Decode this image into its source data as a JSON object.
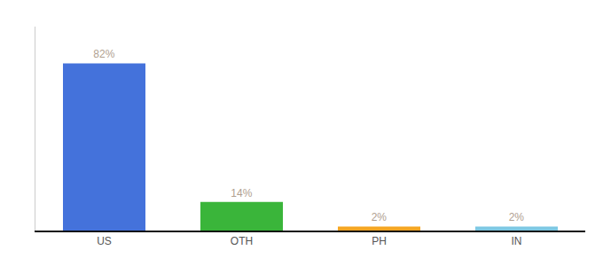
{
  "chart_data": {
    "type": "bar",
    "categories": [
      "US",
      "OTH",
      "PH",
      "IN"
    ],
    "values": [
      82,
      14,
      2,
      2
    ],
    "value_labels": [
      "82%",
      "14%",
      "2%",
      "2%"
    ],
    "colors": [
      "#4472db",
      "#3ab53a",
      "#f5a623",
      "#7ec8e3"
    ],
    "ylim": [
      0,
      100
    ],
    "grid": false,
    "data_labels": true,
    "tick_labels": "x"
  }
}
